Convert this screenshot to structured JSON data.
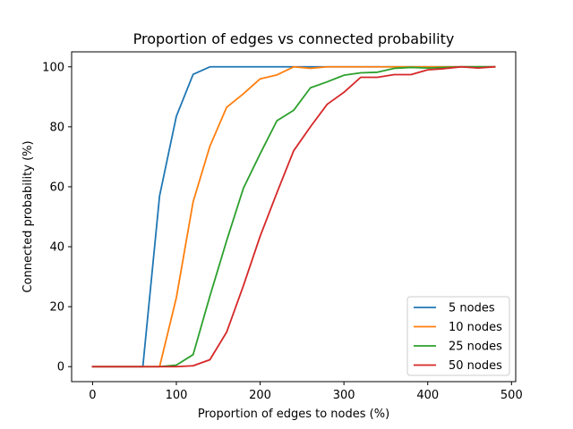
{
  "chart_data": {
    "type": "line",
    "title": "Proportion of edges vs connected probability",
    "xlabel": "Proportion of edges to nodes (%)",
    "ylabel": "Connected probability (%)",
    "xlim": [
      -25,
      505
    ],
    "ylim": [
      -5,
      105
    ],
    "xticks": [
      0,
      100,
      200,
      300,
      400,
      500
    ],
    "yticks": [
      0,
      20,
      40,
      60,
      80,
      100
    ],
    "grid": false,
    "legend_position": "lower-right",
    "x": [
      0,
      20,
      40,
      60,
      80,
      100,
      120,
      140,
      160,
      180,
      200,
      220,
      240,
      260,
      280,
      300,
      320,
      340,
      360,
      380,
      400,
      420,
      440,
      460,
      480
    ],
    "series": [
      {
        "name": "5 nodes",
        "color": "#1f77b4",
        "values": [
          0,
          0,
          0,
          0,
          57,
          83.5,
          97.5,
          100,
          100,
          100,
          100,
          100,
          100,
          100,
          100,
          100,
          100,
          100,
          100,
          100,
          100,
          100,
          100,
          100,
          100
        ]
      },
      {
        "name": "10 nodes",
        "color": "#ff7f0e",
        "values": [
          0,
          0,
          0,
          0,
          0,
          23,
          55,
          73.5,
          86.5,
          91,
          96,
          97.3,
          100,
          99.5,
          100,
          100,
          100,
          100,
          100,
          100,
          100,
          100,
          100,
          100,
          100
        ]
      },
      {
        "name": "25 nodes",
        "color": "#2ca02c",
        "values": [
          0,
          0,
          0,
          0,
          0,
          0.5,
          4,
          23.5,
          42,
          59.5,
          71,
          82,
          85.5,
          93,
          95,
          97.2,
          98,
          98.2,
          99.5,
          99.8,
          99.6,
          99.8,
          100,
          100,
          100
        ]
      },
      {
        "name": "50 nodes",
        "color": "#d62728",
        "values": [
          0,
          0,
          0,
          0,
          0,
          0,
          0.3,
          2.3,
          11.5,
          27,
          43.5,
          58,
          72,
          80,
          87.5,
          91.5,
          96.5,
          96.5,
          97.4,
          97.4,
          99,
          99.4,
          100,
          99.6,
          100
        ]
      }
    ]
  }
}
